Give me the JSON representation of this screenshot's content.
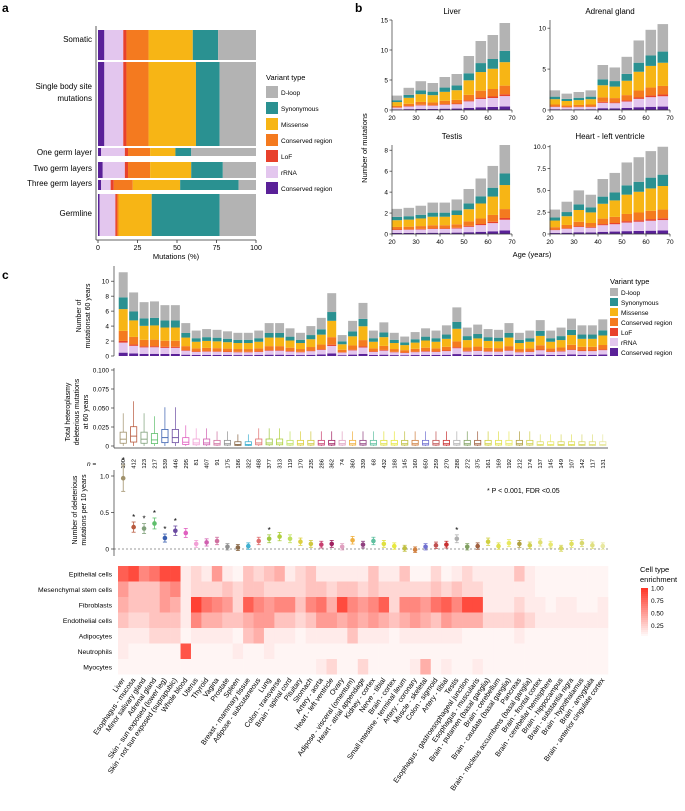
{
  "colors": {
    "dloop": "#b3b3b3",
    "syn": "#2a9191",
    "missense": "#f7b515",
    "conserved_region_or": "#f47a1f",
    "lof": "#e8412c",
    "rrna": "#e3c6ee",
    "conserved_region_pu": "#5a2198"
  },
  "variant_type_title": "Variant type",
  "variant_types": [
    "D-loop",
    "Synonymous",
    "Missense",
    "Conserved region",
    "LoF",
    "rRNA",
    "Conserved region"
  ],
  "panel_a": {
    "label": "a",
    "chart_data": {
      "type": "bar",
      "title": "",
      "xlabel": "Mutations (%)",
      "xlim": [
        0,
        100
      ],
      "xticks": [
        "0",
        "25",
        "50",
        "75",
        "100"
      ],
      "categories": [
        "Somatic",
        "Single body site mutations",
        "One germ layer",
        "Two germ layers",
        "Three germ layers",
        "Germline"
      ],
      "series_order": [
        "Conserved region (rRNA-purple)",
        "rRNA",
        "LoF",
        "Conserved region",
        "Missense",
        "Synonymous",
        "D-loop"
      ],
      "series": [
        {
          "name": "Conserved region (purple)",
          "values": [
            4,
            4,
            2,
            3,
            2,
            1
          ]
        },
        {
          "name": "rRNA",
          "values": [
            12,
            12,
            15,
            14,
            6,
            10
          ]
        },
        {
          "name": "LoF",
          "values": [
            2,
            2,
            2,
            2,
            2,
            1
          ]
        },
        {
          "name": "Conserved region",
          "values": [
            14,
            14,
            14,
            14,
            12,
            1
          ]
        },
        {
          "name": "Missense",
          "values": [
            28,
            30,
            16,
            26,
            30,
            21
          ]
        },
        {
          "name": "Synonymous",
          "values": [
            16,
            15,
            10,
            20,
            37,
            43
          ]
        },
        {
          "name": "D-loop",
          "values": [
            24,
            23,
            41,
            21,
            11,
            23
          ]
        }
      ]
    }
  },
  "panel_b": {
    "label": "b",
    "ylabel": "Number of mutations",
    "xlabel": "Age (years)",
    "xticks": [
      "20",
      "30",
      "40",
      "50",
      "60",
      "70"
    ],
    "chart_data": [
      {
        "type": "bar",
        "title": "Liver",
        "ylim": [
          0,
          15
        ],
        "yticks": [
          "0",
          "5",
          "10",
          "15"
        ],
        "x": [
          22,
          27,
          32,
          37,
          42,
          47,
          52,
          57,
          62,
          67
        ],
        "totals": [
          2.4,
          3.7,
          4.8,
          4.5,
          5.5,
          6,
          9,
          11.5,
          12.5,
          14.5
        ]
      },
      {
        "type": "bar",
        "title": "Adrenal gland",
        "ylim": [
          0,
          11
        ],
        "yticks": [
          "0",
          "5",
          "10"
        ],
        "x": [
          22,
          27,
          32,
          37,
          42,
          47,
          52,
          57,
          62,
          67
        ],
        "totals": [
          2.4,
          2,
          2.2,
          2.4,
          5.5,
          5.2,
          6.5,
          8.5,
          9.8,
          10.5
        ]
      },
      {
        "type": "bar",
        "title": "Testis",
        "ylim": [
          0,
          8.5
        ],
        "yticks": [
          "0",
          "2",
          "4",
          "6",
          "8"
        ],
        "x": [
          22,
          27,
          32,
          37,
          42,
          47,
          52,
          57,
          62,
          67
        ],
        "totals": [
          2.4,
          2.5,
          2.7,
          3,
          3,
          3.3,
          4.3,
          5.3,
          6.5,
          8.5
        ]
      },
      {
        "type": "bar",
        "title": "Heart - left ventricle",
        "ylim": [
          0,
          10.2
        ],
        "yticks": [
          "0",
          "2.5",
          "5.0",
          "7.5",
          "10.0"
        ],
        "x": [
          22,
          27,
          32,
          37,
          42,
          47,
          52,
          57,
          62,
          67
        ],
        "totals": [
          2.8,
          3.7,
          5,
          4.5,
          6.3,
          7,
          8.2,
          8.8,
          9.5,
          10
        ]
      }
    ],
    "fractions": {
      "dloop": 0.32,
      "syn": 0.13,
      "missense": 0.27,
      "conserved_or": 0.1,
      "lof": 0.02,
      "rrna": 0.12,
      "conserved_pu": 0.04
    }
  },
  "panel_c": {
    "label": "c",
    "top_ylabel_1": "Number of",
    "top_ylabel_2": "mutationsat 60 years",
    "top_yticks": [
      "0",
      "2",
      "4",
      "6",
      "8",
      "10"
    ],
    "top_ylim": [
      0,
      11.5
    ],
    "mid_ylabel_1": "Total heteroplasmy",
    "mid_ylabel_2": "deleterious mutations",
    "mid_ylabel_3": "at 60 years",
    "mid_yticks": [
      "0",
      "0.025",
      "0.050",
      "0.075",
      "0.100"
    ],
    "low_ylabel_1": "Number of deleterious",
    "low_ylabel_2": "mutations per 10 years",
    "low_yticks": [
      "0",
      "0.5",
      "1.0"
    ],
    "n_label": "n =",
    "sig_note": "* P < 0.001, FDR <0.05",
    "heat_title_1": "Cell type",
    "heat_title_2": "enrichment",
    "heat_ticks": [
      "1.00",
      "0.75",
      "0.50",
      "0.25"
    ],
    "cell_types": [
      "Epithelial cells",
      "Mesenchymal stem cells",
      "Fibroblasts",
      "Endothelial cells",
      "Adipocytes",
      "Neutrophils",
      "Myocytes"
    ],
    "chart_data": {
      "type": "bar",
      "tissues": [
        "Liver",
        "Esophagus - mucosa",
        "Minor salivary gland",
        "Adrenal gland",
        "Skin - sun exposed (lower leg)",
        "Skin - not sun exposed (suprapubic)",
        "Whole blood",
        "Uterus",
        "Thyroid",
        "Vagina",
        "Prostate",
        "Spleen",
        "Breast - mammary tissue",
        "Adipose - subcutaneous",
        "Lung",
        "Colon - transverse",
        "Brain - spinal cord",
        "Pituitary",
        "Stomach",
        "Artery - aorta",
        "Heart - left ventricle",
        "Ovary",
        "Adipose - visceral (omentum)",
        "Heart - atrial appendage",
        "Kidney - cortex",
        "Nerve - tibial",
        "Brain - cortex",
        "Small intestine - terminal ileum",
        "Artery - coronary",
        "Muscle - skeletal",
        "Colon - sigmoid",
        "Artery - tibial",
        "Testis",
        "Esophagus - gastroesophageal junction",
        "Esophagus - muscularis",
        "Brain - putamen (basal ganglia)",
        "Brain - cerebellum",
        "Brain - caudate (basal ganglia)",
        "Pancreas",
        "Brain - nucleus accumbens (basal ganglia)",
        "Brain - frontal cortex",
        "Brain - cerebellar hemisphere",
        "Brain - hippocampus",
        "Brain - substantia nigra",
        "Brain - hypothalamus",
        "Brain - amygdala",
        "Brain - anterior cingulate cortex"
      ],
      "n": [
        "190",
        "412",
        "123",
        "217",
        "539",
        "446",
        "295",
        "81",
        "407",
        "91",
        "175",
        "186",
        "322",
        "488",
        "377",
        "313",
        "119",
        "170",
        "235",
        "286",
        "362",
        "74",
        "360",
        "339",
        "68",
        "432",
        "188",
        "145",
        "160",
        "650",
        "259",
        "270",
        "288",
        "272",
        "375",
        "161",
        "169",
        "192",
        "212",
        "174",
        "137",
        "145",
        "149",
        "107",
        "142",
        "117",
        "131"
      ],
      "mutations_60y": [
        11.2,
        8.5,
        7.2,
        7.3,
        6.8,
        6.8,
        4.4,
        3.4,
        3.6,
        3.5,
        3.3,
        3.1,
        3.1,
        3.4,
        4.4,
        4.4,
        3.7,
        3.1,
        4,
        5.1,
        8.4,
        2.8,
        4.7,
        7.1,
        3.4,
        4.5,
        3.1,
        2.6,
        3.2,
        3.7,
        3.4,
        4.1,
        6.5,
        3.8,
        4.2,
        3.6,
        3.5,
        4.4,
        3.1,
        3.4,
        4.8,
        3.4,
        3.8,
        5,
        4.1,
        4.1,
        4.9
      ],
      "heteroplasmy_median": [
        0.009,
        0.013,
        0.009,
        0.008,
        0.011,
        0.011,
        0.005,
        0.004,
        0.004,
        0.003,
        0.003,
        0.002,
        0.002,
        0.004,
        0.004,
        0.004,
        0.003,
        0.003,
        0.003,
        0.003,
        0.003,
        0.003,
        0.003,
        0.003,
        0.003,
        0.003,
        0.003,
        0.003,
        0.003,
        0.003,
        0.003,
        0.003,
        0.003,
        0.003,
        0.003,
        0.003,
        0.003,
        0.003,
        0.003,
        0.003,
        0.002,
        0.002,
        0.002,
        0.002,
        0.002,
        0.002,
        0.002
      ],
      "rate_per_10y": [
        0.97,
        0.3,
        0.28,
        0.35,
        0.15,
        0.25,
        0.22,
        0.07,
        0.09,
        0.11,
        0.03,
        0.02,
        0.04,
        0.11,
        0.14,
        0.17,
        0.14,
        0.1,
        0.07,
        0.06,
        0.07,
        0.03,
        0.12,
        0.06,
        0.11,
        0.07,
        0.04,
        0.01,
        -0.01,
        0.03,
        0.05,
        0.06,
        0.14,
        0.03,
        0.04,
        0.1,
        0.04,
        0.08,
        0.07,
        0.05,
        0.09,
        0.06,
        0.01,
        0.07,
        0.08,
        0.05,
        0.04
      ],
      "significant": [
        true,
        true,
        true,
        true,
        true,
        true,
        false,
        false,
        false,
        false,
        false,
        false,
        false,
        false,
        true,
        false,
        false,
        false,
        false,
        false,
        false,
        false,
        false,
        false,
        false,
        false,
        false,
        false,
        false,
        false,
        false,
        false,
        true,
        false,
        false,
        false,
        false,
        false,
        false,
        false,
        false,
        false,
        false,
        false,
        false,
        false,
        false
      ]
    }
  }
}
